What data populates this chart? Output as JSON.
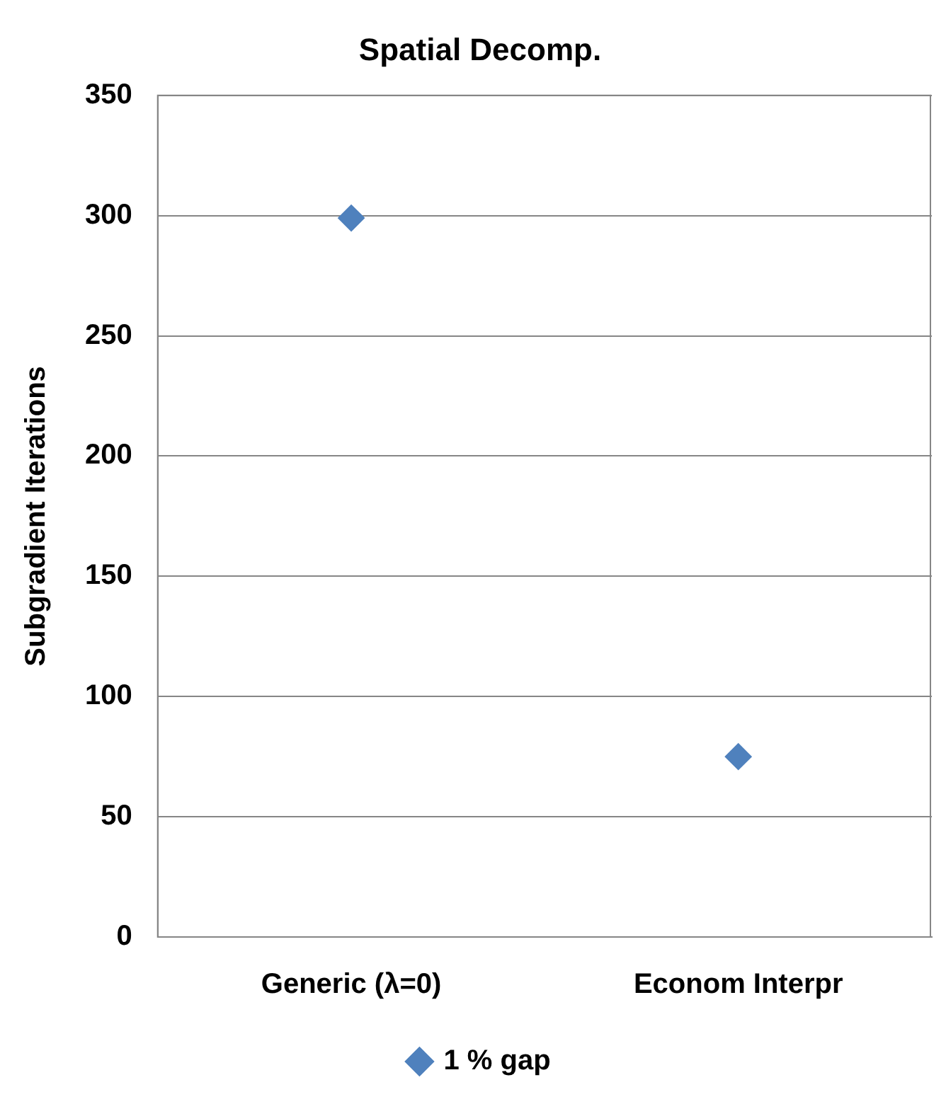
{
  "chart_data": {
    "type": "scatter",
    "title": "Spatial Decomp.",
    "ylabel": "Subgradient Iterations",
    "categories": [
      "Generic (λ=0)",
      "Econom Interpr"
    ],
    "series": [
      {
        "name": "1 % gap",
        "color": "#4f81bd",
        "values": [
          299,
          75
        ]
      }
    ],
    "ylim": [
      0,
      350
    ],
    "yticks": [
      0,
      50,
      100,
      150,
      200,
      250,
      300,
      350
    ],
    "grid": "y",
    "legend": "bottom",
    "marker": "diamond"
  }
}
